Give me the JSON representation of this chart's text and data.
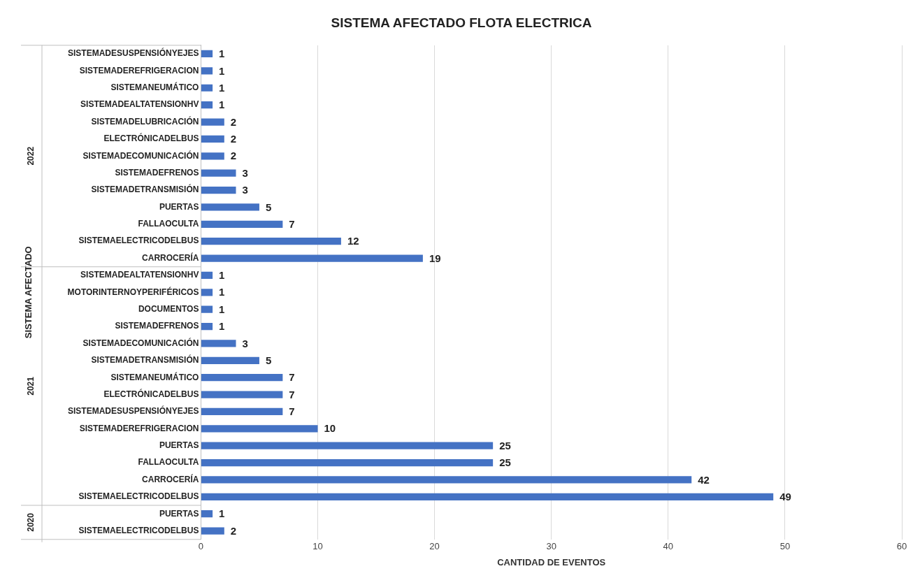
{
  "chart_data": {
    "type": "bar",
    "orientation": "horizontal",
    "title": "SISTEMA AFECTADO FLOTA ELECTRICA",
    "xlabel": "CANTIDAD DE EVENTOS",
    "ylabel": "SISTEMA AFECTADO",
    "categories": [
      "SISTEMADESUSPENSIÓNYEJES",
      "SISTEMADEREFRIGERACION",
      "SISTEMANEUMÁTICO",
      "SISTEMADEALTATENSIONHV",
      "SISTEMADELUBRICACIÓN",
      "ELECTRÓNICADELBUS",
      "SISTEMADECOMUNICACIÓN",
      "SISTEMADEFRENOS",
      "SISTEMADETRANSMISIÓN",
      "PUERTAS",
      "FALLAOCULTA",
      "SISTEMAELECTRICODELBUS",
      "CARROCERÍA",
      "SISTEMADEALTATENSIONHV",
      "MOTORINTERNOYPERIFÉRICOS",
      "DOCUMENTOS",
      "SISTEMADEFRENOS",
      "SISTEMADECOMUNICACIÓN",
      "SISTEMADETRANSMISIÓN",
      "SISTEMANEUMÁTICO",
      "ELECTRÓNICADELBUS",
      "SISTEMADESUSPENSIÓNYEJES",
      "SISTEMADEREFRIGERACION",
      "PUERTAS",
      "FALLAOCULTA",
      "CARROCERÍA",
      "SISTEMAELECTRICODELBUS",
      "PUERTAS",
      "SISTEMAELECTRICODELBUS"
    ],
    "values": [
      1,
      1,
      1,
      1,
      2,
      2,
      2,
      3,
      3,
      5,
      7,
      12,
      19,
      1,
      1,
      1,
      1,
      3,
      5,
      7,
      7,
      7,
      10,
      25,
      25,
      42,
      49,
      1,
      2
    ],
    "color": "#4472c4",
    "xlim": [
      0,
      60
    ],
    "xticks": [
      0,
      10,
      20,
      30,
      40,
      50,
      60
    ],
    "grid": "x",
    "data_labels": true,
    "annotations": [
      "2022",
      "2021",
      "2020"
    ]
  }
}
